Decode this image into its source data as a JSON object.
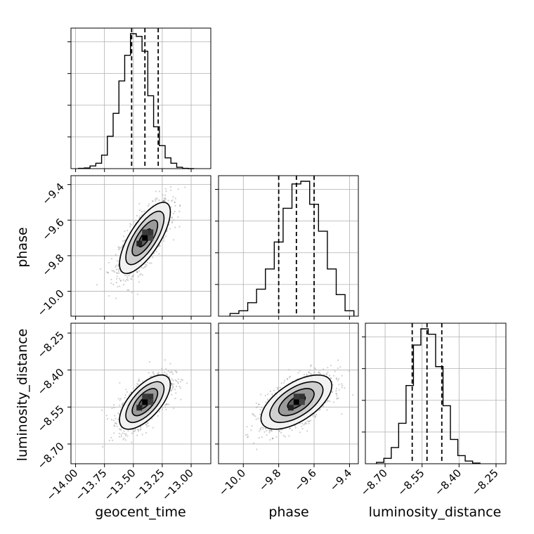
{
  "chart_data": {
    "type": "corner",
    "parameters": [
      "geocent_time",
      "phase",
      "luminosity_distance"
    ],
    "ticks": {
      "geocent_time": [
        "-14.00",
        "-13.75",
        "-13.50",
        "-13.25",
        "-13.00"
      ],
      "phase": [
        "-10.0",
        "-9.8",
        "-9.6",
        "-9.4"
      ],
      "phase_y": [
        "-9.4",
        "-9.6",
        "-9.8",
        "-10.0"
      ],
      "luminosity_distance": [
        "-8.70",
        "-8.55",
        "-8.40",
        "-8.25"
      ],
      "luminosity_distance_y": [
        "-8.25",
        "-8.40",
        "-8.55",
        "-8.70"
      ]
    },
    "ranges": {
      "geocent_time": [
        -14.04,
        -12.83
      ],
      "phase": [
        -10.14,
        -9.35
      ],
      "luminosity_distance": [
        -8.78,
        -8.21
      ]
    },
    "histograms": {
      "geocent_time": {
        "bins": [
          -13.95,
          -13.9,
          -13.85,
          -13.8,
          -13.75,
          -13.7,
          -13.65,
          -13.6,
          -13.55,
          -13.5,
          -13.45,
          -13.4,
          -13.35,
          -13.3,
          -13.25,
          -13.2,
          -13.15,
          -13.1,
          -13.05,
          -13.0
        ],
        "counts": [
          0.002,
          0.005,
          0.02,
          0.04,
          0.1,
          0.24,
          0.41,
          0.65,
          0.84,
          1.0,
          0.98,
          0.87,
          0.54,
          0.31,
          0.17,
          0.08,
          0.04,
          0.01,
          0.002,
          0.0
        ],
        "quantiles": [
          -13.515,
          -13.4,
          -13.285
        ]
      },
      "phase": {
        "bins": [
          -10.05,
          -10.0,
          -9.95,
          -9.9,
          -9.85,
          -9.8,
          -9.75,
          -9.7,
          -9.65,
          -9.6,
          -9.55,
          -9.5,
          -9.45,
          -9.4
        ],
        "counts": [
          0.02,
          0.04,
          0.1,
          0.2,
          0.35,
          0.55,
          0.8,
          0.98,
          1.0,
          0.83,
          0.63,
          0.35,
          0.16,
          0.04
        ],
        "quantiles": [
          -9.8,
          -9.7,
          -9.6
        ]
      },
      "luminosity_distance": {
        "bins": [
          -8.72,
          -8.69,
          -8.66,
          -8.63,
          -8.6,
          -8.57,
          -8.54,
          -8.51,
          -8.48,
          -8.45,
          -8.42,
          -8.39,
          -8.36,
          -8.33
        ],
        "counts": [
          0.01,
          0.04,
          0.12,
          0.3,
          0.58,
          0.88,
          1.0,
          0.96,
          0.72,
          0.43,
          0.18,
          0.06,
          0.02,
          0.005
        ],
        "quantiles": [
          -8.59,
          -8.53,
          -8.47
        ]
      }
    },
    "joint": [
      {
        "x": "geocent_time",
        "y": "phase",
        "center": [
          -13.4,
          -9.7
        ],
        "sx": 0.11,
        "sy": 0.1,
        "rho": 0.73
      },
      {
        "x": "geocent_time",
        "y": "luminosity_distance",
        "center": [
          -13.4,
          -8.53
        ],
        "sx": 0.11,
        "sy": 0.055,
        "rho": 0.65
      },
      {
        "x": "phase",
        "y": "luminosity_distance",
        "center": [
          -9.7,
          -8.53
        ],
        "sx": 0.1,
        "sy": 0.055,
        "rho": 0.6
      }
    ]
  }
}
